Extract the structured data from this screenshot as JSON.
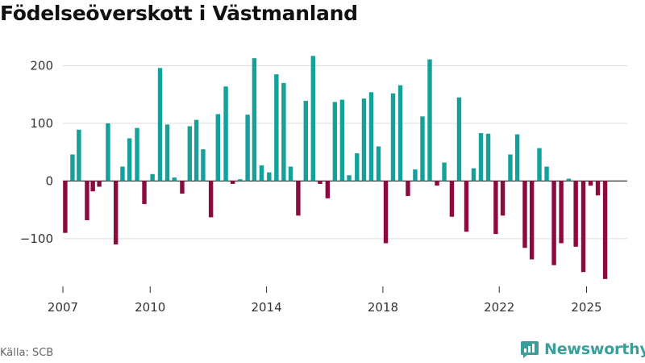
{
  "page_title": "Födelseöverskott i Västmanland",
  "source": "Källa: SCB",
  "brand": {
    "name": "Newsworthy",
    "logo_icon": "newsworthy-chart-logo-icon"
  },
  "colors": {
    "positive": "#14a19a",
    "negative": "#8b0a3f",
    "grid": "#dddddd",
    "axis": "#333333",
    "brand": "#3a9e9b"
  },
  "chart_data": {
    "type": "bar",
    "title": "Födelseöverskott i Västmanland",
    "xlabel": "",
    "ylabel": "",
    "ylim": [
      -180,
      230
    ],
    "yticks": [
      -100,
      0,
      100,
      200
    ],
    "ytick_labels": [
      "−100",
      "0",
      "100",
      "200"
    ],
    "xlim": [
      2007.0,
      2026.4
    ],
    "xticks": [
      2007,
      2010,
      2014,
      2018,
      2022,
      2025
    ],
    "xtick_labels": [
      "2007",
      "2010",
      "2014",
      "2018",
      "2022",
      "2025"
    ],
    "bar_width_years": 0.15,
    "grid": true,
    "legend": "none",
    "x": [
      2007.08,
      2007.33,
      2007.55,
      2007.83,
      2008.03,
      2008.25,
      2008.55,
      2008.82,
      2009.05,
      2009.29,
      2009.55,
      2009.8,
      2010.08,
      2010.34,
      2010.59,
      2010.83,
      2011.1,
      2011.36,
      2011.59,
      2011.82,
      2012.09,
      2012.33,
      2012.6,
      2012.84,
      2013.09,
      2013.35,
      2013.58,
      2013.83,
      2014.09,
      2014.34,
      2014.59,
      2014.83,
      2015.09,
      2015.35,
      2015.6,
      2015.84,
      2016.1,
      2016.35,
      2016.6,
      2016.84,
      2017.11,
      2017.35,
      2017.6,
      2017.85,
      2018.1,
      2018.35,
      2018.6,
      2018.86,
      2019.11,
      2019.36,
      2019.61,
      2019.86,
      2020.11,
      2020.37,
      2020.62,
      2020.87,
      2021.12,
      2021.37,
      2021.62,
      2021.88,
      2022.12,
      2022.38,
      2022.62,
      2022.88,
      2023.12,
      2023.38,
      2023.63,
      2023.88,
      2024.13,
      2024.39,
      2024.63,
      2024.89,
      2025.14,
      2025.39,
      2025.64,
      2025.9
    ],
    "values": [
      -90,
      46,
      89,
      -68,
      -18,
      -10,
      100,
      -110,
      25,
      74,
      92,
      -40,
      12,
      196,
      98,
      6,
      -22,
      95,
      106,
      55,
      -63,
      116,
      164,
      -5,
      3,
      115,
      213,
      27,
      15,
      185,
      170,
      25,
      -60,
      139,
      217,
      -5,
      -30,
      137,
      141,
      10,
      48,
      143,
      154,
      60,
      -108,
      152,
      166,
      -26,
      20,
      112,
      211,
      -8,
      32,
      -62,
      145,
      -88,
      22,
      83,
      82,
      -92,
      -60,
      46,
      81,
      -116,
      -136,
      57,
      25,
      -146,
      -108,
      4,
      -114,
      -158,
      -8,
      -25,
      -170,
      0
    ]
  }
}
